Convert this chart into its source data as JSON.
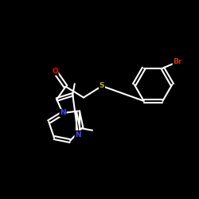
{
  "background_color": "#000000",
  "atom_colors": {
    "O": "#ff0000",
    "S": "#ccaa00",
    "N": "#4444ff",
    "Br": "#cc3300",
    "C": "#ffffff"
  },
  "bond_color": "#ffffff",
  "bond_width": 1.5,
  "figsize": [
    2.5,
    2.5
  ],
  "dpi": 100,
  "xlim": [
    0,
    10
  ],
  "ylim": [
    0,
    10
  ]
}
